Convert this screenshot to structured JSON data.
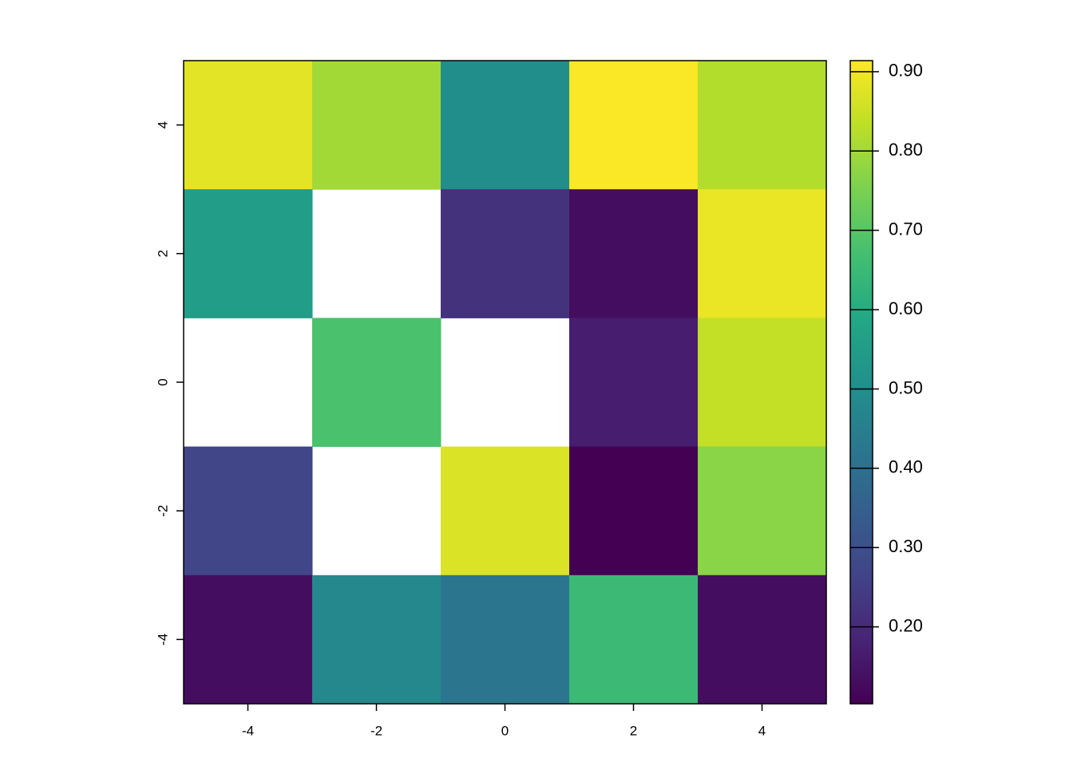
{
  "chart_data": {
    "type": "heatmap",
    "x": [
      -4,
      -2,
      0,
      2,
      4
    ],
    "y": [
      4,
      2,
      0,
      -2,
      -4
    ],
    "values": [
      [
        0.88,
        0.8,
        0.5,
        0.91,
        0.82
      ],
      [
        0.55,
        null,
        0.22,
        0.13,
        0.89
      ],
      [
        null,
        0.68,
        null,
        0.17,
        0.84
      ],
      [
        0.27,
        null,
        0.87,
        0.1,
        0.77
      ],
      [
        0.13,
        0.48,
        0.42,
        0.65,
        0.13
      ]
    ],
    "xlim": [
      -5,
      5
    ],
    "ylim": [
      -5,
      5
    ],
    "xticks": [
      -4,
      -2,
      0,
      2,
      4
    ],
    "yticks": [
      -4,
      -2,
      0,
      2,
      4
    ],
    "clim": [
      0.103,
      0.914
    ],
    "cticks": [
      {
        "value": 0.2,
        "label": "0.20"
      },
      {
        "value": 0.3,
        "label": "0.30"
      },
      {
        "value": 0.4,
        "label": "0.40"
      },
      {
        "value": 0.5,
        "label": "0.50"
      },
      {
        "value": 0.6,
        "label": "0.60"
      },
      {
        "value": 0.7,
        "label": "0.70"
      },
      {
        "value": 0.8,
        "label": "0.80"
      },
      {
        "value": 0.9,
        "label": "0.90"
      }
    ],
    "colormap": [
      "#440154",
      "#482475",
      "#414487",
      "#355f8d",
      "#2a788e",
      "#21918c",
      "#22a884",
      "#44bf70",
      "#7ad151",
      "#bddf26",
      "#fde725"
    ]
  }
}
